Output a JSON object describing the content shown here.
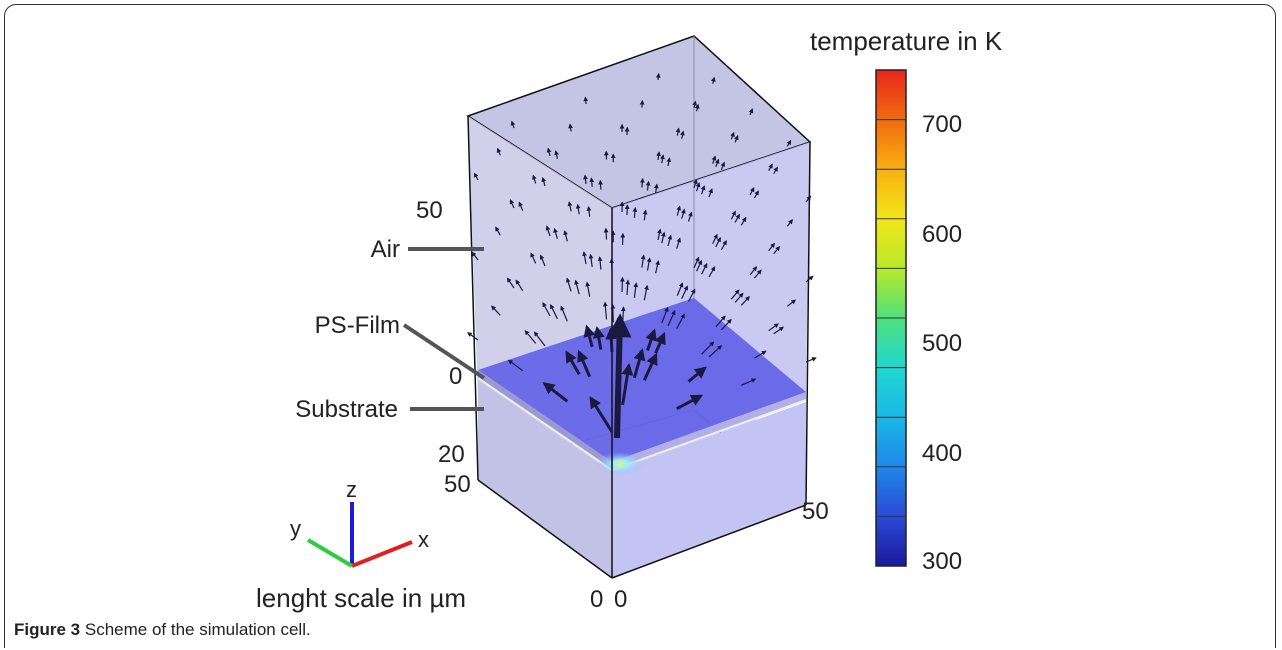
{
  "colorbar": {
    "title": "temperature in K",
    "ticks": [
      "300",
      "400",
      "500",
      "600",
      "700"
    ],
    "colors": [
      "#1a1a9e",
      "#2b4ad6",
      "#1e88e8",
      "#1ab8e8",
      "#20d8d0",
      "#4fe07a",
      "#b8ea2a",
      "#f2e61a",
      "#f8b012",
      "#f26a10",
      "#e8261a"
    ]
  },
  "layers": {
    "air": "Air",
    "film": "PS-Film",
    "substrate": "Substrate"
  },
  "axis_ticks": {
    "z_top": "50",
    "z_zero": "0",
    "z_sub": "20",
    "y_far": "50",
    "x_far": "50",
    "origin_left": "0",
    "origin_right": "0"
  },
  "triad": {
    "x": "x",
    "y": "y",
    "z": "z",
    "colors": {
      "x": "#e02020",
      "y": "#2ecc40",
      "z": "#1a1ae0"
    }
  },
  "scale_label": "lenght scale in µm",
  "caption": {
    "label": "Figure 3",
    "text": "Scheme of the simulation cell."
  }
}
